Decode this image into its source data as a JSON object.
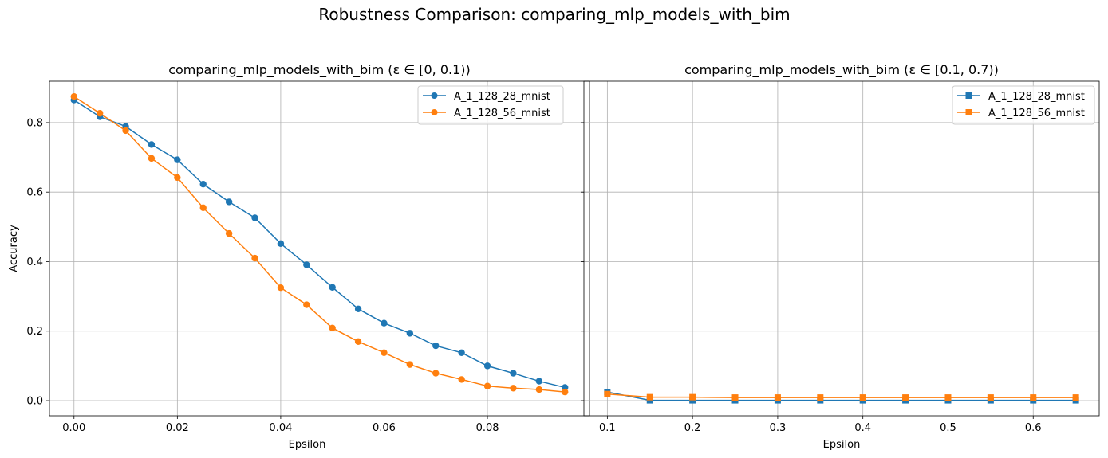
{
  "figure": {
    "suptitle": "Robustness Comparison: comparing_mlp_models_with_bim"
  },
  "chart_data": [
    {
      "type": "line",
      "title": "comparing_mlp_models_with_bim (ε ∈ [0, 0.1))",
      "xlabel": "Epsilon",
      "ylabel": "Accuracy",
      "xlim": [
        -0.00475,
        0.09975
      ],
      "ylim": [
        -0.0435,
        0.919
      ],
      "xticks": [
        0.0,
        0.02,
        0.04,
        0.06,
        0.08
      ],
      "xtick_labels": [
        "0.00",
        "0.02",
        "0.04",
        "0.06",
        "0.08"
      ],
      "yticks": [
        0.0,
        0.2,
        0.4,
        0.6,
        0.8
      ],
      "ytick_labels": [
        "0.0",
        "0.2",
        "0.4",
        "0.6",
        "0.8"
      ],
      "grid": true,
      "legend_position": "top-right",
      "marker": "circle",
      "x": [
        0.0,
        0.005,
        0.01,
        0.015,
        0.02,
        0.025,
        0.03,
        0.035,
        0.04,
        0.045,
        0.05,
        0.055,
        0.06,
        0.065,
        0.07,
        0.075,
        0.08,
        0.085,
        0.09,
        0.095
      ],
      "series": [
        {
          "name": "A_1_128_28_mnist",
          "color": "#1f77b4",
          "values": [
            0.865,
            0.817,
            0.789,
            0.737,
            0.693,
            0.623,
            0.572,
            0.526,
            0.452,
            0.391,
            0.326,
            0.264,
            0.223,
            0.194,
            0.158,
            0.138,
            0.1,
            0.079,
            0.056,
            0.038
          ]
        },
        {
          "name": "A_1_128_56_mnist",
          "color": "#ff7f0e",
          "values": [
            0.875,
            0.827,
            0.777,
            0.697,
            0.642,
            0.555,
            0.481,
            0.41,
            0.325,
            0.276,
            0.209,
            0.17,
            0.138,
            0.104,
            0.079,
            0.061,
            0.042,
            0.036,
            0.032,
            0.025
          ]
        }
      ]
    },
    {
      "type": "line",
      "title": "comparing_mlp_models_with_bim (ε ∈ [0.1, 0.7))",
      "xlabel": "Epsilon",
      "ylabel": "",
      "xlim": [
        0.0725,
        0.6775
      ],
      "ylim": [
        -0.0435,
        0.919
      ],
      "xticks": [
        0.1,
        0.2,
        0.3,
        0.4,
        0.5,
        0.6
      ],
      "xtick_labels": [
        "0.1",
        "0.2",
        "0.3",
        "0.4",
        "0.5",
        "0.6"
      ],
      "yticks": [
        0.0,
        0.2,
        0.4,
        0.6,
        0.8
      ],
      "grid": true,
      "legend_position": "top-right",
      "marker": "square",
      "x": [
        0.1,
        0.15,
        0.2,
        0.25,
        0.3,
        0.35,
        0.4,
        0.45,
        0.5,
        0.55,
        0.6,
        0.65
      ],
      "series": [
        {
          "name": "A_1_128_28_mnist",
          "color": "#1f77b4",
          "values": [
            0.025,
            0.001,
            0.001,
            0.001,
            0.001,
            0.001,
            0.001,
            0.001,
            0.001,
            0.001,
            0.001,
            0.001
          ]
        },
        {
          "name": "A_1_128_56_mnist",
          "color": "#ff7f0e",
          "values": [
            0.019,
            0.01,
            0.01,
            0.009,
            0.009,
            0.009,
            0.009,
            0.009,
            0.009,
            0.009,
            0.009,
            0.009
          ]
        }
      ]
    }
  ]
}
